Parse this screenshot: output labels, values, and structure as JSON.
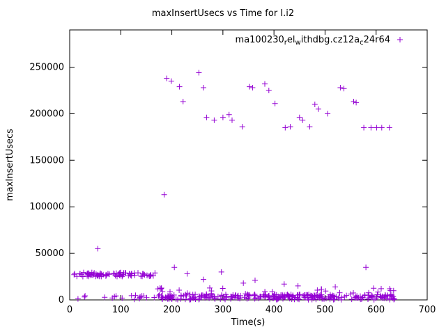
{
  "chart_data": {
    "type": "scatter",
    "title": "maxInsertUsecs vs Time for I.i2",
    "xlabel": "Time(s)",
    "ylabel": "maxInsertUsecs",
    "xlim": [
      0,
      700
    ],
    "ylim": [
      0,
      290000
    ],
    "x_ticks": [
      0,
      100,
      200,
      300,
      400,
      500,
      600,
      700
    ],
    "y_ticks": [
      0,
      50000,
      100000,
      150000,
      200000,
      250000
    ],
    "grid": false,
    "legend_position": "top-right-inside",
    "series": [
      {
        "name": "ma100230_rel_withdbg.cz12a_c24r64",
        "label_parts": [
          {
            "t": "ma100230",
            "sub": false
          },
          {
            "t": "r",
            "sub": true
          },
          {
            "t": "el",
            "sub": false
          },
          {
            "t": "w",
            "sub": true
          },
          {
            "t": "ithdbg.cz12a",
            "sub": false
          },
          {
            "t": "c",
            "sub": true
          },
          {
            "t": "24r64",
            "sub": false
          }
        ],
        "color": "#9400d3",
        "marker": "plus",
        "rng_seed": 42,
        "points": [
          [
            190,
            238000
          ],
          [
            199,
            235000
          ],
          [
            215,
            229000
          ],
          [
            222,
            213000
          ],
          [
            253,
            244000
          ],
          [
            262,
            228000
          ],
          [
            268,
            196000
          ],
          [
            283,
            193000
          ],
          [
            300,
            196000
          ],
          [
            312,
            199000
          ],
          [
            318,
            193000
          ],
          [
            338,
            186000
          ],
          [
            352,
            229000
          ],
          [
            358,
            228000
          ],
          [
            382,
            232000
          ],
          [
            390,
            225000
          ],
          [
            402,
            211000
          ],
          [
            422,
            185000
          ],
          [
            432,
            186000
          ],
          [
            450,
            196000
          ],
          [
            456,
            193000
          ],
          [
            470,
            186000
          ],
          [
            480,
            210000
          ],
          [
            487,
            205000
          ],
          [
            505,
            200000
          ],
          [
            530,
            228000
          ],
          [
            537,
            227000
          ],
          [
            556,
            213000
          ],
          [
            561,
            212000
          ],
          [
            576,
            185000
          ],
          [
            590,
            185000
          ],
          [
            601,
            185000
          ],
          [
            611,
            185000
          ],
          [
            626,
            185000
          ],
          [
            185,
            113000
          ],
          [
            55,
            55000
          ],
          [
            205,
            35000
          ],
          [
            580,
            35000
          ],
          [
            230,
            28000
          ],
          [
            262,
            22000
          ],
          [
            297,
            30000
          ],
          [
            340,
            18000
          ],
          [
            363,
            21000
          ],
          [
            420,
            17000
          ],
          [
            447,
            15000
          ],
          [
            520,
            14000
          ],
          [
            610,
            12000
          ],
          [
            628,
            10000
          ]
        ],
        "point_clusters": [
          {
            "x_min": 8,
            "x_max": 168,
            "y_min": 25000,
            "y_max": 29500,
            "count": 85
          },
          {
            "x_min": 5,
            "x_max": 168,
            "y_min": 300,
            "y_max": 5000,
            "count": 18
          },
          {
            "x_min": 172,
            "x_max": 638,
            "y_min": 200,
            "y_max": 6000,
            "count": 280
          },
          {
            "x_min": 172,
            "x_max": 638,
            "y_min": 6000,
            "y_max": 13000,
            "count": 28
          }
        ]
      }
    ]
  }
}
